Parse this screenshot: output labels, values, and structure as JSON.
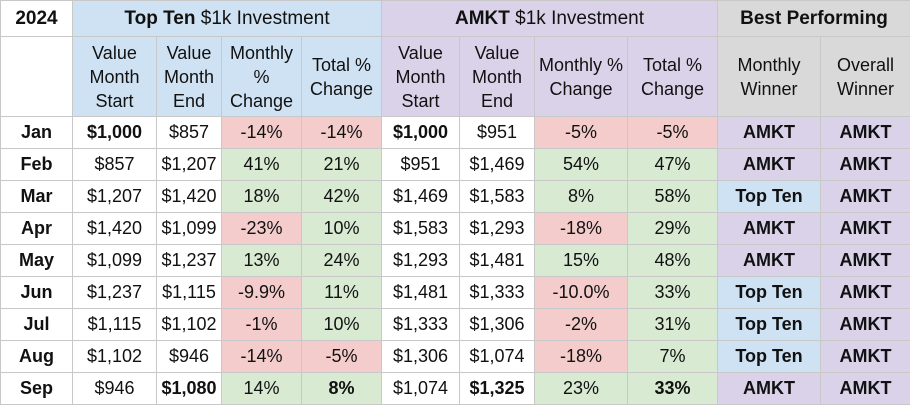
{
  "header": {
    "year": "2024",
    "group1_bold": "Top Ten",
    "group1_rest": " $1k Investment",
    "group2_bold": "AMKT",
    "group2_rest": " $1k Investment",
    "group3": "Best Performing",
    "cols": [
      "Value Month Start",
      "Value Month End",
      "Monthly % Change",
      "Total % Change",
      "Value Month Start",
      "Value Month End",
      "Monthly % Change",
      "Total % Change",
      "Monthly Winner",
      "Overall Winner"
    ]
  },
  "rows": [
    {
      "month": "Jan",
      "tt_start": "$1,000",
      "tt_end": "$857",
      "tt_mon": "-14%",
      "tt_tot": "-14%",
      "am_start": "$1,000",
      "am_end": "$951",
      "am_mon": "-5%",
      "am_tot": "-5%",
      "win_m": "AMKT",
      "win_o": "AMKT"
    },
    {
      "month": "Feb",
      "tt_start": "$857",
      "tt_end": "$1,207",
      "tt_mon": "41%",
      "tt_tot": "21%",
      "am_start": "$951",
      "am_end": "$1,469",
      "am_mon": "54%",
      "am_tot": "47%",
      "win_m": "AMKT",
      "win_o": "AMKT"
    },
    {
      "month": "Mar",
      "tt_start": "$1,207",
      "tt_end": "$1,420",
      "tt_mon": "18%",
      "tt_tot": "42%",
      "am_start": "$1,469",
      "am_end": "$1,583",
      "am_mon": "8%",
      "am_tot": "58%",
      "win_m": "Top Ten",
      "win_o": "AMKT"
    },
    {
      "month": "Apr",
      "tt_start": "$1,420",
      "tt_end": "$1,099",
      "tt_mon": "-23%",
      "tt_tot": "10%",
      "am_start": "$1,583",
      "am_end": "$1,293",
      "am_mon": "-18%",
      "am_tot": "29%",
      "win_m": "AMKT",
      "win_o": "AMKT"
    },
    {
      "month": "May",
      "tt_start": "$1,099",
      "tt_end": "$1,237",
      "tt_mon": "13%",
      "tt_tot": "24%",
      "am_start": "$1,293",
      "am_end": "$1,481",
      "am_mon": "15%",
      "am_tot": "48%",
      "win_m": "AMKT",
      "win_o": "AMKT"
    },
    {
      "month": "Jun",
      "tt_start": "$1,237",
      "tt_end": "$1,115",
      "tt_mon": "-9.9%",
      "tt_tot": "11%",
      "am_start": "$1,481",
      "am_end": "$1,333",
      "am_mon": "-10.0%",
      "am_tot": "33%",
      "win_m": "Top Ten",
      "win_o": "AMKT"
    },
    {
      "month": "Jul",
      "tt_start": "$1,115",
      "tt_end": "$1,102",
      "tt_mon": "-1%",
      "tt_tot": "10%",
      "am_start": "$1,333",
      "am_end": "$1,306",
      "am_mon": "-2%",
      "am_tot": "31%",
      "win_m": "Top Ten",
      "win_o": "AMKT"
    },
    {
      "month": "Aug",
      "tt_start": "$1,102",
      "tt_end": "$946",
      "tt_mon": "-14%",
      "tt_tot": "-5%",
      "am_start": "$1,306",
      "am_end": "$1,074",
      "am_mon": "-18%",
      "am_tot": "7%",
      "win_m": "Top Ten",
      "win_o": "AMKT"
    },
    {
      "month": "Sep",
      "tt_start": "$946",
      "tt_end": "$1,080",
      "tt_mon": "14%",
      "tt_tot": "8%",
      "am_start": "$1,074",
      "am_end": "$1,325",
      "am_mon": "23%",
      "am_tot": "33%",
      "win_m": "AMKT",
      "win_o": "AMKT"
    }
  ],
  "colors": {
    "top_ten_header": "#cfe2f3",
    "amkt_header": "#d9d2e9",
    "best_header": "#d9d9d9",
    "positive": "#d9ead3",
    "negative": "#f4cccc"
  }
}
